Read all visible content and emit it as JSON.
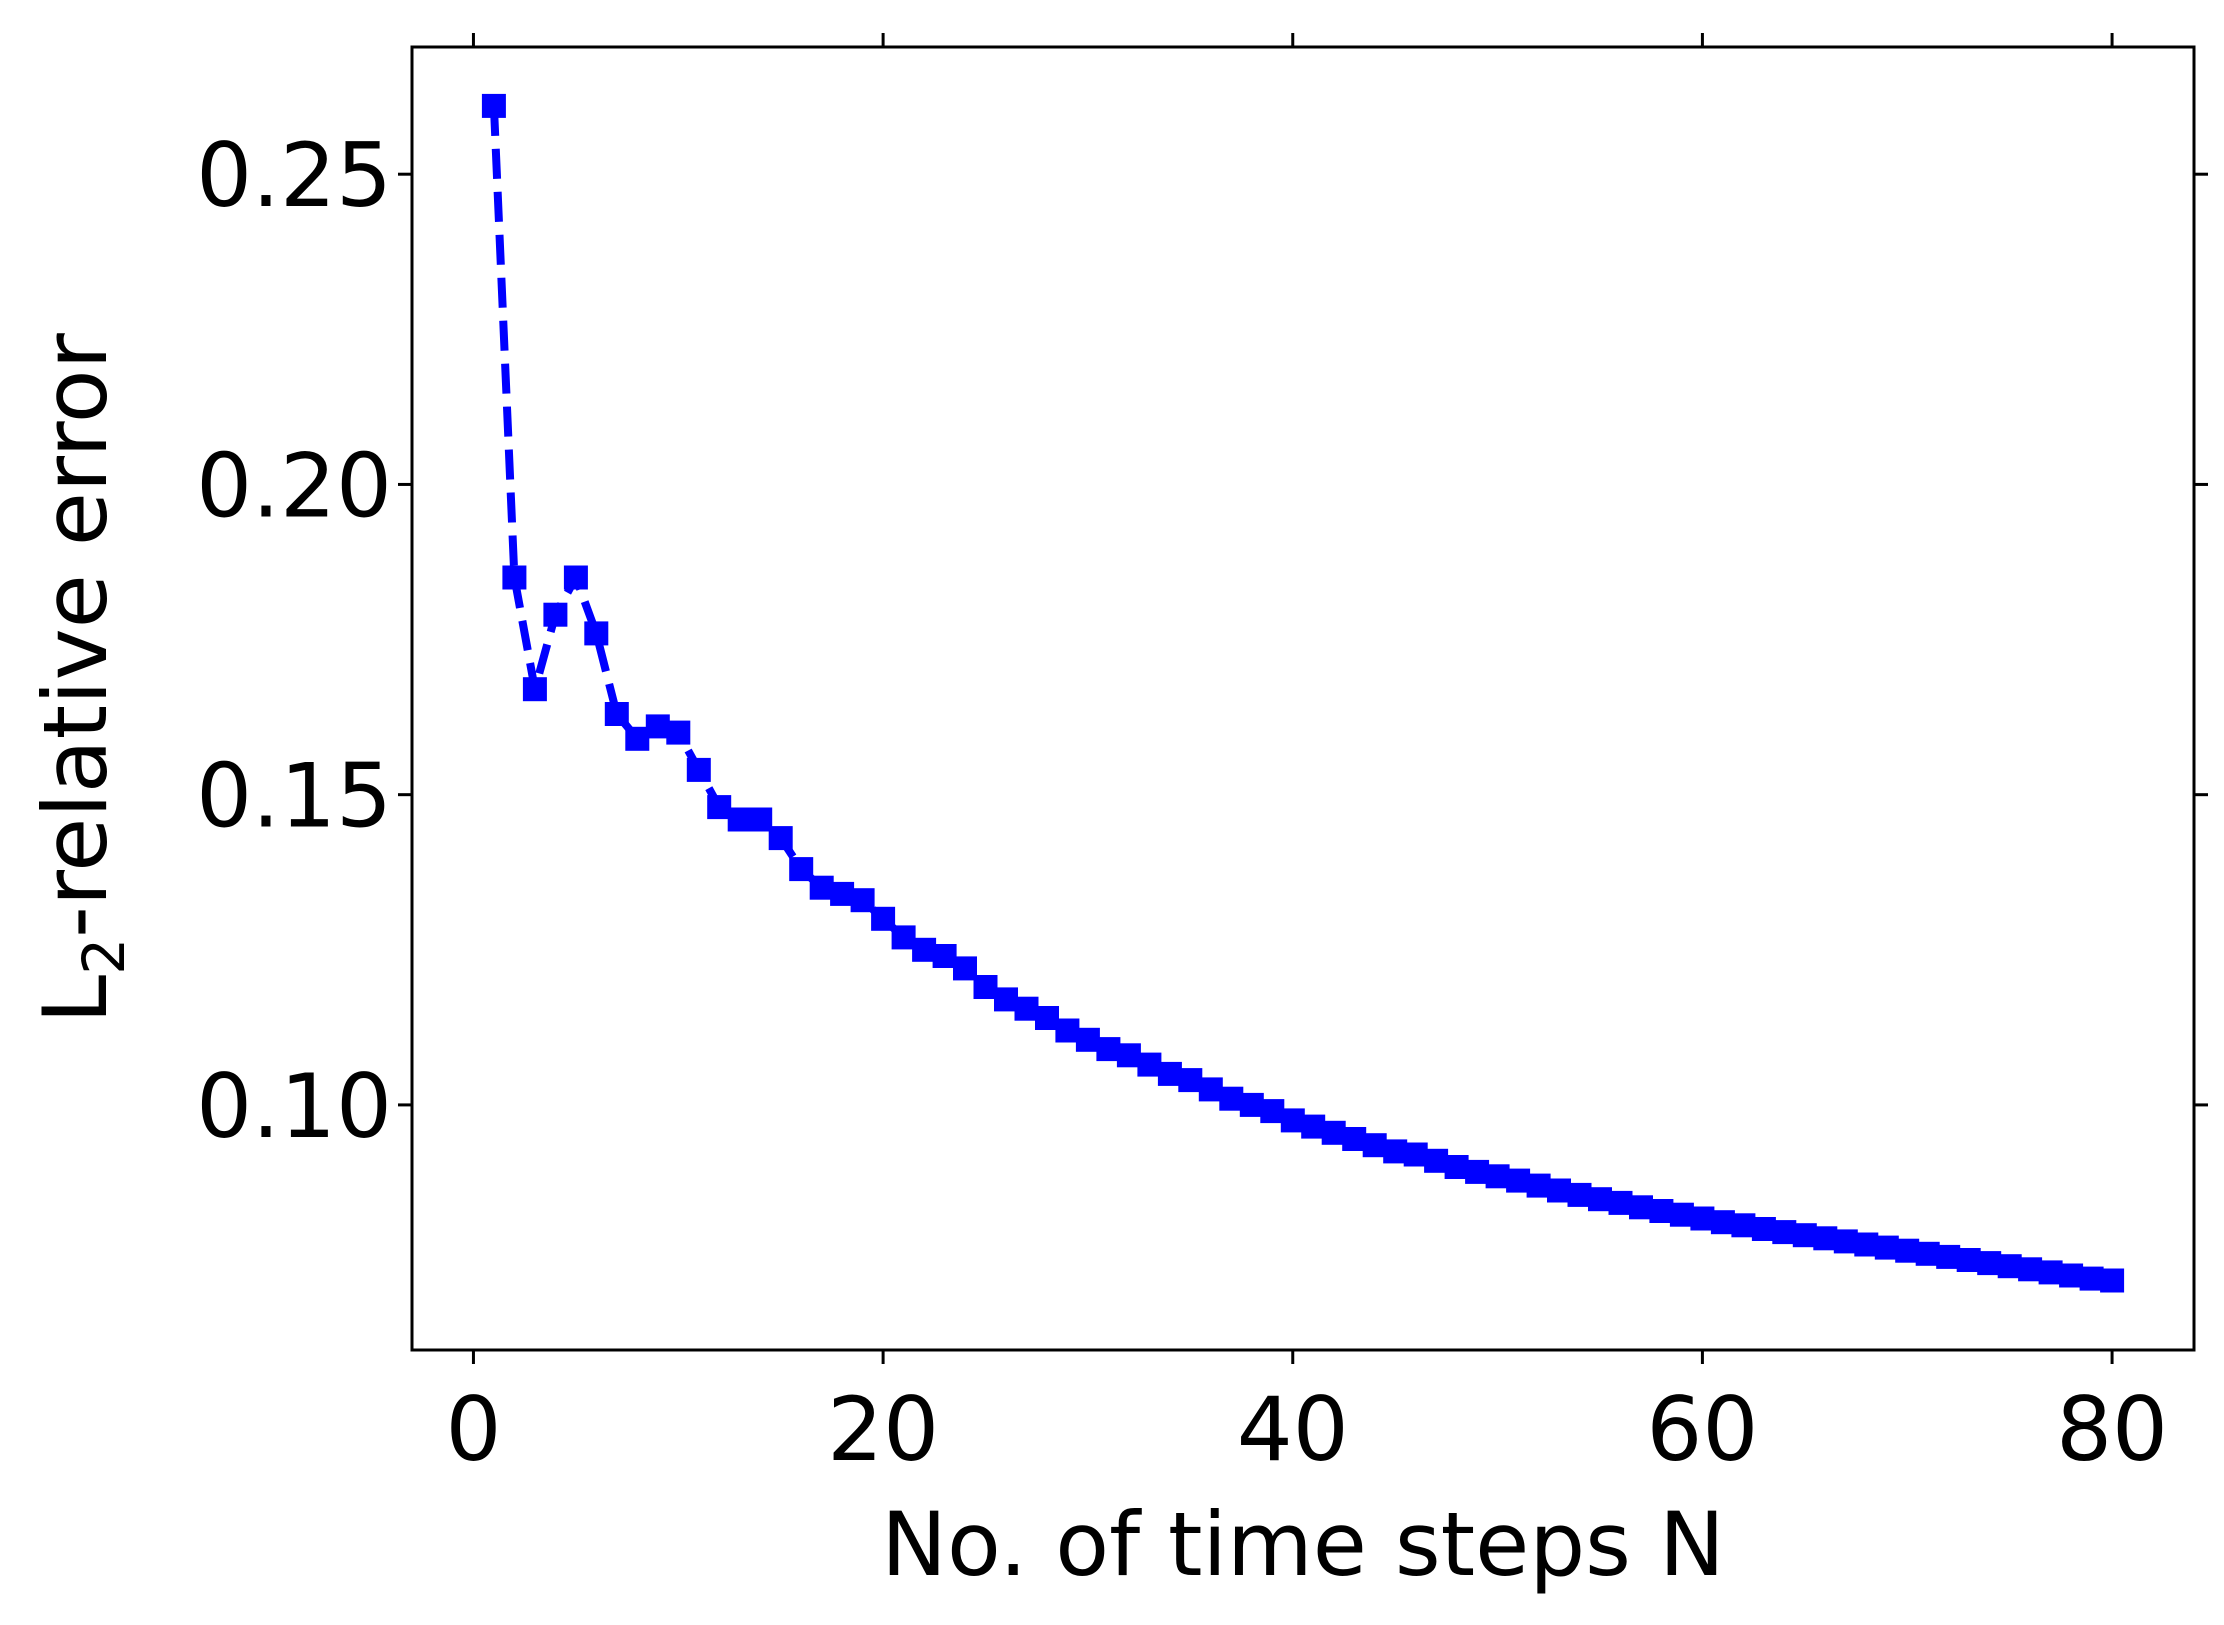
{
  "chart_data": {
    "type": "line",
    "xlabel": "No. of time steps N",
    "ylabel_main": "L",
    "ylabel_sub": "2",
    "ylabel_rest": "-relative error",
    "xlim": [
      -3,
      84
    ],
    "ylim": [
      0.0605,
      0.2705
    ],
    "xticks": [
      0,
      20,
      40,
      60,
      80
    ],
    "xtick_labels": [
      "0",
      "20",
      "40",
      "60",
      "80"
    ],
    "yticks": [
      0.1,
      0.15,
      0.2,
      0.25
    ],
    "ytick_labels": [
      "0.10",
      "0.15",
      "0.20",
      "0.25"
    ],
    "grid": false,
    "series": [
      {
        "color": "#0000ff",
        "line_style": "dashed",
        "marker": "square",
        "x": [
          1,
          2,
          3,
          4,
          5,
          6,
          7,
          8,
          9,
          10,
          11,
          12,
          13,
          14,
          15,
          16,
          17,
          18,
          19,
          20,
          21,
          22,
          23,
          24,
          25,
          26,
          27,
          28,
          29,
          30,
          31,
          32,
          33,
          34,
          35,
          36,
          37,
          38,
          39,
          40,
          41,
          42,
          43,
          44,
          45,
          46,
          47,
          48,
          49,
          50,
          51,
          52,
          53,
          54,
          55,
          56,
          57,
          58,
          59,
          60,
          61,
          62,
          63,
          64,
          65,
          66,
          67,
          68,
          69,
          70,
          71,
          72,
          73,
          74,
          75,
          76,
          77,
          78,
          79,
          80
        ],
        "y": [
          0.261,
          0.185,
          0.167,
          0.179,
          0.185,
          0.176,
          0.163,
          0.159,
          0.161,
          0.16,
          0.154,
          0.148,
          0.146,
          0.146,
          0.143,
          0.138,
          0.135,
          0.134,
          0.133,
          0.13,
          0.127,
          0.125,
          0.124,
          0.122,
          0.119,
          0.117,
          0.1155,
          0.114,
          0.112,
          0.1105,
          0.109,
          0.108,
          0.1065,
          0.105,
          0.104,
          0.1025,
          0.101,
          0.1,
          0.099,
          0.0975,
          0.0965,
          0.0955,
          0.0945,
          0.0935,
          0.0925,
          0.092,
          0.091,
          0.09,
          0.0892,
          0.0885,
          0.0878,
          0.087,
          0.0862,
          0.0855,
          0.0848,
          0.0842,
          0.0835,
          0.0829,
          0.0823,
          0.0817,
          0.0811,
          0.0806,
          0.08,
          0.0795,
          0.079,
          0.0785,
          0.078,
          0.0775,
          0.077,
          0.0765,
          0.076,
          0.0755,
          0.075,
          0.0745,
          0.074,
          0.0735,
          0.073,
          0.0725,
          0.072,
          0.0717
        ]
      }
    ]
  }
}
